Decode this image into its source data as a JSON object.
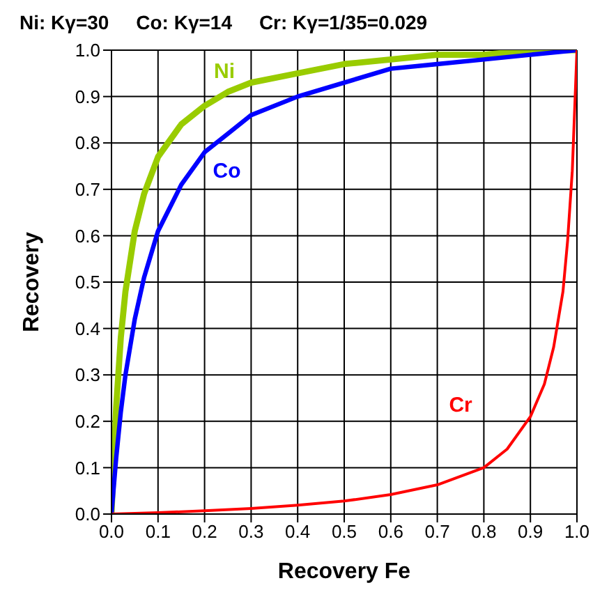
{
  "chart_data": {
    "type": "line",
    "title": "Ni: Kγ=30     Co: Kγ=14     Cr: Kγ=1/35=0.029",
    "xlabel": "Recovery Fe",
    "ylabel": "Recovery",
    "xlim": [
      0,
      1
    ],
    "ylim": [
      0,
      1
    ],
    "xticks": [
      {
        "value": 0,
        "label": "0.0"
      },
      {
        "value": 0.1,
        "label": "0.1"
      },
      {
        "value": 0.2,
        "label": "0.2"
      },
      {
        "value": 0.3,
        "label": "0.3"
      },
      {
        "value": 0.4,
        "label": "0.4"
      },
      {
        "value": 0.5,
        "label": "0.5"
      },
      {
        "value": 0.6,
        "label": "0.6"
      },
      {
        "value": 0.7,
        "label": "0.7"
      },
      {
        "value": 0.8,
        "label": "0.8"
      },
      {
        "value": 0.9,
        "label": "0.9"
      },
      {
        "value": 1,
        "label": "1.0"
      }
    ],
    "yticks": [
      {
        "value": 0,
        "label": "0.0"
      },
      {
        "value": 0.1,
        "label": "0.1"
      },
      {
        "value": 0.2,
        "label": "0.2"
      },
      {
        "value": 0.3,
        "label": "0.3"
      },
      {
        "value": 0.4,
        "label": "0.4"
      },
      {
        "value": 0.5,
        "label": "0.5"
      },
      {
        "value": 0.6,
        "label": "0.6"
      },
      {
        "value": 0.7,
        "label": "0.7"
      },
      {
        "value": 0.8,
        "label": "0.8"
      },
      {
        "value": 0.9,
        "label": "0.9"
      },
      {
        "value": 1,
        "label": "1.0"
      }
    ],
    "grid": true,
    "legend": false,
    "marker": "none",
    "line_style": "solid",
    "series": [
      {
        "name": "Ni",
        "color": "#99cc00",
        "x": [
          0,
          0.01,
          0.02,
          0.03,
          0.05,
          0.07,
          0.1,
          0.15,
          0.2,
          0.25,
          0.3,
          0.4,
          0.5,
          0.6,
          0.7,
          0.8,
          0.9,
          1
        ],
        "values": [
          0,
          0.23,
          0.38,
          0.48,
          0.61,
          0.69,
          0.77,
          0.84,
          0.88,
          0.91,
          0.93,
          0.95,
          0.97,
          0.98,
          0.99,
          0.99,
          1,
          1
        ]
      },
      {
        "name": "Co",
        "color": "#0000ff",
        "x": [
          0,
          0.01,
          0.02,
          0.03,
          0.05,
          0.07,
          0.1,
          0.15,
          0.2,
          0.25,
          0.3,
          0.4,
          0.5,
          0.6,
          0.7,
          0.8,
          0.9,
          1
        ],
        "values": [
          0,
          0.12,
          0.22,
          0.3,
          0.42,
          0.51,
          0.61,
          0.71,
          0.78,
          0.82,
          0.86,
          0.9,
          0.93,
          0.96,
          0.97,
          0.98,
          0.99,
          1
        ]
      },
      {
        "name": "Cr",
        "color": "#ff0000",
        "x": [
          0,
          0.1,
          0.2,
          0.3,
          0.4,
          0.5,
          0.6,
          0.7,
          0.8,
          0.85,
          0.9,
          0.93,
          0.95,
          0.97,
          0.98,
          0.99,
          1
        ],
        "values": [
          0,
          0.003,
          0.007,
          0.012,
          0.019,
          0.028,
          0.042,
          0.063,
          0.1,
          0.14,
          0.21,
          0.28,
          0.36,
          0.48,
          0.59,
          0.74,
          1
        ]
      }
    ]
  }
}
